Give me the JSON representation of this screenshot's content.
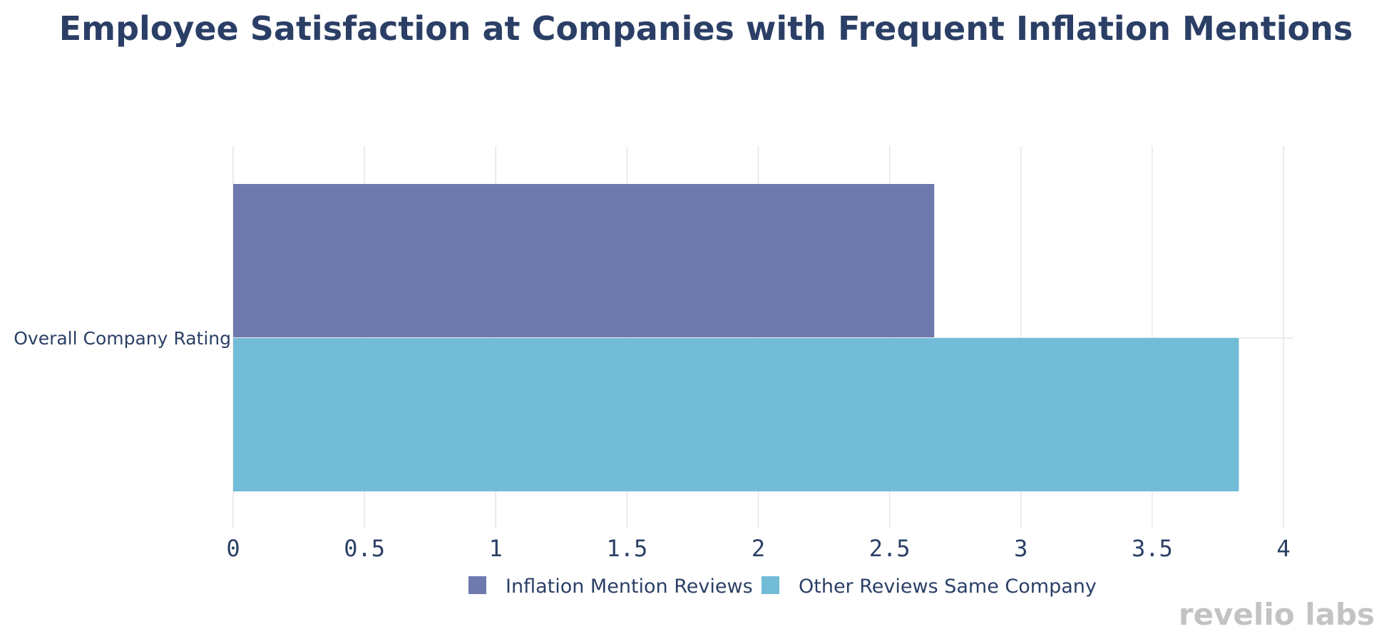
{
  "chart_data": {
    "type": "bar",
    "orientation": "horizontal",
    "title": "Employee Satisfaction at Companies with Frequent Inflation Mentions",
    "categories": [
      "Overall Company Rating"
    ],
    "series": [
      {
        "name": "Inflation Mention Reviews",
        "values": [
          2.67
        ],
        "color": "#6e79ae"
      },
      {
        "name": "Other Reviews Same Company",
        "values": [
          3.83
        ],
        "color": "#72bcd7"
      }
    ],
    "xlim": [
      0,
      4
    ],
    "xticks": [
      "0",
      "0.5",
      "1",
      "1.5",
      "2",
      "2.5",
      "3",
      "3.5",
      "4"
    ],
    "grid": true,
    "legend_position": "bottom-center"
  },
  "watermark": "revelio labs"
}
